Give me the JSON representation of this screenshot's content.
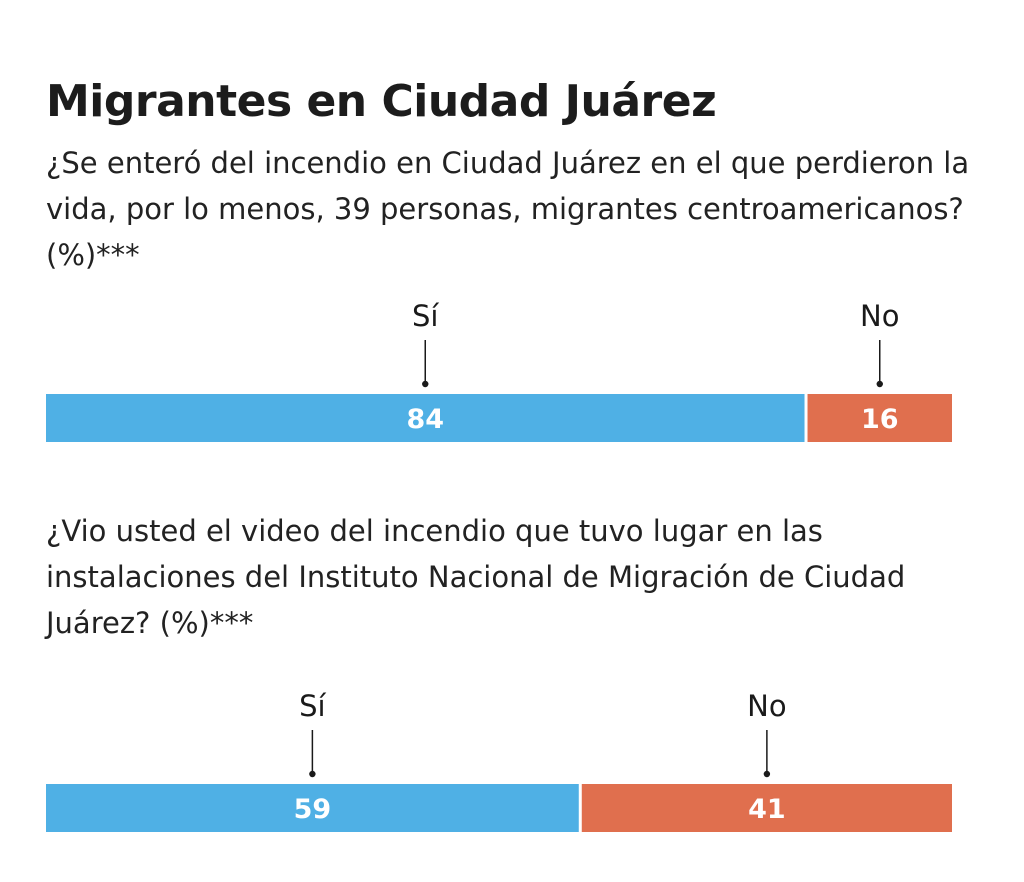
{
  "title": "Migrantes en Ciudad Juárez",
  "colors": {
    "si": "#4fb0e5",
    "no": "#e06f4e",
    "bar_label": "#ffffff",
    "text": "#1a1a1a"
  },
  "chart_data": [
    {
      "type": "bar",
      "orientation": "horizontal-stacked",
      "question": "¿Se enteró del incendio en Ciudad Juárez en el que perdieron la vida, por lo menos, 39 personas, migrantes centroamericanos? (%)***",
      "categories": [
        "Sí",
        "No"
      ],
      "values": [
        84,
        16
      ],
      "value_labels": [
        "84",
        "16"
      ],
      "unit": "%",
      "xlim": [
        0,
        100
      ]
    },
    {
      "type": "bar",
      "orientation": "horizontal-stacked",
      "question": "¿Vio usted el video del incendio que tuvo lugar en las instalaciones del Instituto Nacional de Migración de Ciudad Juárez? (%)***",
      "categories": [
        "Sí",
        "No"
      ],
      "values": [
        59,
        41
      ],
      "value_labels": [
        "59",
        "41"
      ],
      "unit": "%",
      "xlim": [
        0,
        100
      ]
    }
  ]
}
